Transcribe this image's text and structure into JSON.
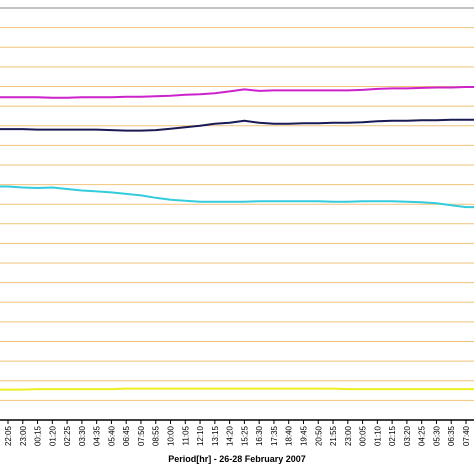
{
  "chart_data": {
    "type": "line",
    "xlabel": "Period[hr] - 26-28 February 2007",
    "ylabel": "",
    "title": "",
    "grid": true,
    "colors": {
      "grid": "#f2c27a",
      "plot_border": "#000000",
      "background": "#ffffff"
    },
    "categories": [
      "22:05",
      "23:00",
      "00:15",
      "01:20",
      "02:25",
      "03:30",
      "04:35",
      "05:40",
      "06:45",
      "07:50",
      "08:55",
      "10:00",
      "11:05",
      "12:10",
      "13:15",
      "14:20",
      "15:25",
      "16:30",
      "17:35",
      "18:40",
      "19:45",
      "20:50",
      "21:55",
      "23:00",
      "00:05",
      "01:10",
      "02:15",
      "03:20",
      "04:25",
      "05:30",
      "06:35",
      "07:40"
    ],
    "series": [
      {
        "color": "#cc22cc",
        "values": [
          91,
          91,
          91,
          91.5,
          91.5,
          91,
          91,
          91,
          90.5,
          90.5,
          90,
          89.5,
          88.5,
          88,
          87,
          85,
          83,
          84.5,
          84,
          84,
          84,
          84,
          84,
          84,
          83.5,
          82.5,
          82,
          82,
          81.5,
          81,
          81,
          80.5
        ]
      },
      {
        "color": "#1a1a55",
        "values": [
          123.5,
          123.5,
          124,
          124,
          124,
          124,
          124,
          124.5,
          125,
          125,
          124.5,
          123,
          121.5,
          120,
          118,
          117,
          115,
          117,
          118,
          118,
          117.5,
          117.5,
          117,
          117,
          116.5,
          115.5,
          115,
          115,
          114.5,
          114.5,
          114,
          114
        ]
      },
      {
        "color": "#33ccdd",
        "values": [
          182,
          183,
          183.5,
          183,
          184.5,
          186,
          187,
          188,
          189.5,
          191,
          193.5,
          195.5,
          196.5,
          197.5,
          197.5,
          197.5,
          197.5,
          197,
          197,
          197,
          197,
          197,
          197.5,
          197.5,
          197,
          197,
          197,
          197.5,
          198,
          199,
          201,
          203
        ]
      },
      {
        "color": "#eeee22",
        "values": [
          389,
          389,
          388.5,
          388.5,
          388.5,
          388.5,
          388.5,
          388.5,
          388,
          388,
          388,
          388,
          388,
          388,
          388,
          388,
          388,
          388,
          388,
          388,
          388,
          388,
          388,
          388.5,
          388.5,
          388.5,
          388.5,
          388.5,
          388.5,
          388.5,
          388.5,
          388.5
        ]
      }
    ],
    "ylim": [
      0,
      420
    ]
  }
}
